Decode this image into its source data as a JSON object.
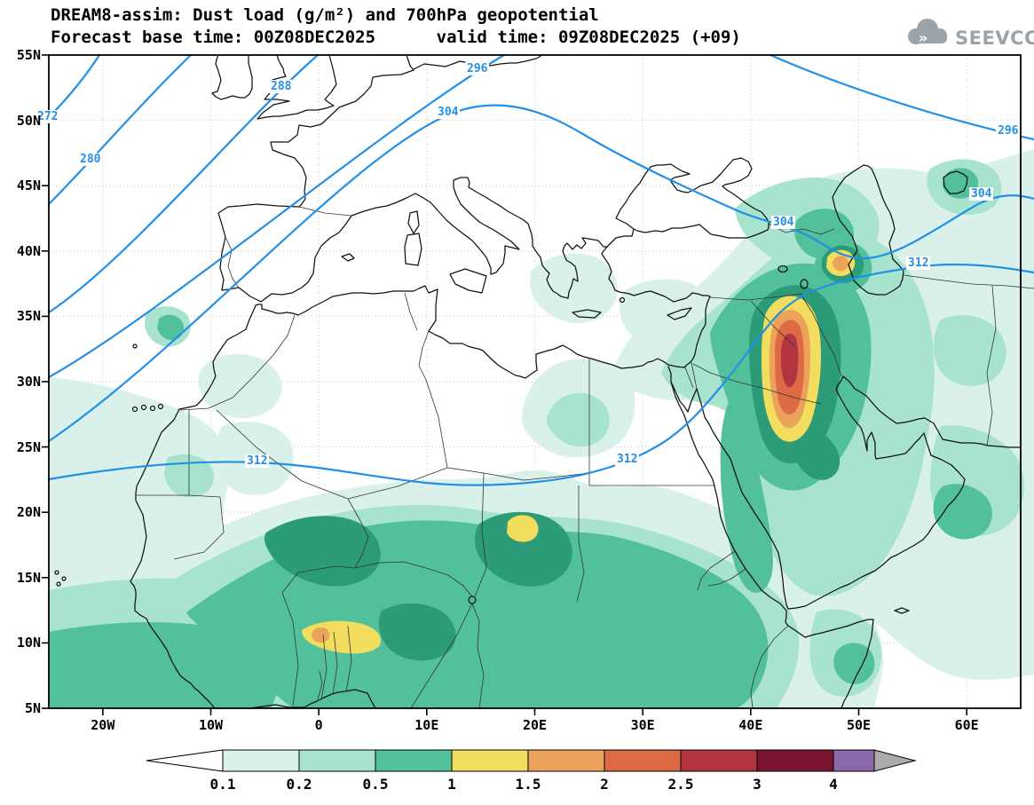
{
  "header": {
    "title_line1": "DREAM8-assim: Dust load (g/m²) and 700hPa geopotential",
    "title_line2": "Forecast base time: 00Z08DEC2025      valid time: 09Z08DEC2025 (+09)"
  },
  "branding": {
    "logo_text": "SEEVCCC"
  },
  "map": {
    "lat_labels": [
      "55N",
      "50N",
      "45N",
      "40N",
      "35N",
      "30N",
      "25N",
      "20N",
      "15N",
      "10N",
      "5N"
    ],
    "lon_labels": [
      "20W",
      "10W",
      "0",
      "10E",
      "20E",
      "30E",
      "40E",
      "50E",
      "60E"
    ],
    "contour_labels": [
      {
        "text": "272"
      },
      {
        "text": "280"
      },
      {
        "text": "288"
      },
      {
        "text": "296"
      },
      {
        "text": "304"
      },
      {
        "text": "296"
      },
      {
        "text": "304"
      },
      {
        "text": "304"
      },
      {
        "text": "312"
      },
      {
        "text": "312"
      },
      {
        "text": "312"
      }
    ]
  },
  "palette": {
    "contour_line": "#2390E8",
    "gridline": "#C8C8C8",
    "coastline": "#111111",
    "border": "#333333",
    "logo_gray": "#9CA3A8",
    "dust_shades": {
      "b1": "#D9F1EA",
      "b2": "#A7E3CD",
      "b3": "#52C09B",
      "b4": "#2B9B78",
      "yellow": "#F2DD5F",
      "orange": "#EBA25A",
      "red_orange": "#DC6A45",
      "dark_red": "#B23440",
      "maroon": "#7A1430",
      "purple": "#8A68A8",
      "gray": "#ABABAB"
    }
  },
  "colorbar": {
    "tick_labels": [
      "0.1",
      "0.2",
      "0.5",
      "1",
      "1.5",
      "2",
      "2.5",
      "3",
      "4"
    ],
    "colors": [
      "#FFFFFF",
      "#D9F1EA",
      "#A7E3CD",
      "#52C09B",
      "#F2DD5F",
      "#EBA25A",
      "#DC6A45",
      "#B23440",
      "#7A1430",
      "#8A68A8",
      "#ABABAB"
    ]
  },
  "chart_data": {
    "type": "heatmap",
    "title": "DREAM8-assim: Dust load (g/m²) and 700hPa geopotential",
    "model": "DREAM8-assim",
    "variables": [
      "Dust load (g/m²)",
      "700 hPa geopotential (dam)"
    ],
    "forecast_base_time": "00Z08DEC2025",
    "valid_time": "09Z08DEC2025",
    "forecast_step": "+09",
    "map_extent": {
      "lon_min": -25,
      "lon_max": 65,
      "lat_min": 5,
      "lat_max": 55
    },
    "lat_ticks_deg": [
      55,
      50,
      45,
      40,
      35,
      30,
      25,
      20,
      15,
      10,
      5
    ],
    "lon_ticks_deg": [
      -20,
      -10,
      0,
      10,
      20,
      30,
      40,
      50,
      60
    ],
    "dust_levels_g_m2": [
      0.1,
      0.2,
      0.5,
      1,
      1.5,
      2,
      2.5,
      3,
      4
    ],
    "dust_bands": [
      {
        "range": "< 0.1",
        "color": "#FFFFFF"
      },
      {
        "range": "0.1-0.2",
        "color": "#D9F1EA"
      },
      {
        "range": "0.2-0.5",
        "color": "#A7E3CD"
      },
      {
        "range": "0.5-1",
        "color": "#52C09B"
      },
      {
        "range": "1-1.5",
        "color": "#F2DD5F"
      },
      {
        "range": "1.5-2",
        "color": "#EBA25A"
      },
      {
        "range": "2-2.5",
        "color": "#DC6A45"
      },
      {
        "range": "2.5-3",
        "color": "#B23440"
      },
      {
        "range": "3-4",
        "color": "#7A1430"
      },
      {
        "range": "> 4",
        "color": "#8A68A8"
      }
    ],
    "geopotential_contours_dam": [
      272,
      280,
      288,
      296,
      304,
      312
    ],
    "features": [
      "Sahel dust plume from the West African Atlantic coast to Chad (about 5-18N), mostly 0.2-1 g/m²",
      "Embedded Sahel maxima above 1 g/m² near the Benin/Niger area (about 0-4E, 10N) and the Chad/Libya border (about 18E, 19N)",
      "Major dust outbreak over Mesopotamia/Iraq toward the Persian Gulf (about 42-48E, 26-37N) with core values 2.5-3 g/m²",
      "Secondary maximum about 1.5-2 g/m² over Azerbaijan near the Caspian coast (about 47-49E, 39-40N)",
      "Weak 0.1-0.5 g/m² dust cover over NW Africa, the eastern Mediterranean, Arabia, Iran and east of the Caspian",
      "700 hPa geopotential decreases from 312 dam across the Sahara and Middle East to 272 dam in the NW corner"
    ]
  }
}
